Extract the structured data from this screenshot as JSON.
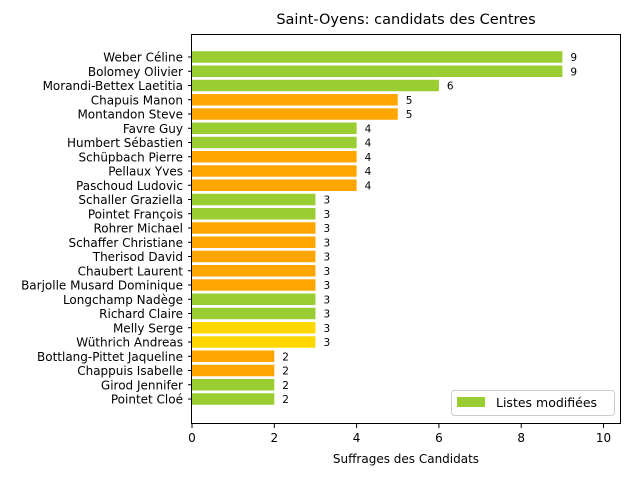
{
  "chart_data": {
    "type": "bar",
    "orientation": "horizontal",
    "title": "Saint-Oyens: candidats des Centres",
    "xlabel": "Suffrages des Candidats",
    "ylabel": "",
    "xlim": [
      0,
      10.4
    ],
    "xticks": [
      "0",
      "2",
      "4",
      "6",
      "8",
      "10"
    ],
    "xtick_values": [
      0,
      2,
      4,
      6,
      8,
      10
    ],
    "grid": false,
    "legend": {
      "placement": "lower-right",
      "entries": [
        {
          "label": "Listes modifiées",
          "color": "#9acd32"
        }
      ]
    },
    "colors": {
      "green": "#9acd32",
      "orange": "#ffa500",
      "yellow": "#ffd700"
    },
    "categories": [
      "Weber Céline",
      "Bolomey Olivier",
      "Morandi-Bettex Laetitia",
      "Chapuis Manon",
      "Montandon Steve",
      "Favre Guy",
      "Humbert Sébastien",
      "Schüpbach Pierre",
      "Pellaux Yves",
      "Paschoud Ludovic",
      "Schaller Graziella",
      "Pointet François",
      "Rohrer Michael",
      "Schaffer Christiane",
      "Therisod David",
      "Chaubert Laurent",
      "Barjolle Musard Dominique",
      "Longchamp Nadège",
      "Richard Claire",
      "Melly Serge",
      "Wüthrich Andreas",
      "Bottlang-Pittet Jaqueline",
      "Chappuis Isabelle",
      "Girod Jennifer",
      "Pointet Cloé"
    ],
    "values": [
      9,
      9,
      6,
      5,
      5,
      4,
      4,
      4,
      4,
      4,
      3,
      3,
      3,
      3,
      3,
      3,
      3,
      3,
      3,
      3,
      3,
      2,
      2,
      2,
      2
    ],
    "bar_colors": [
      "green",
      "green",
      "green",
      "orange",
      "orange",
      "green",
      "green",
      "orange",
      "orange",
      "orange",
      "green",
      "green",
      "orange",
      "orange",
      "orange",
      "orange",
      "orange",
      "green",
      "green",
      "yellow",
      "yellow",
      "orange",
      "orange",
      "green",
      "green"
    ]
  }
}
